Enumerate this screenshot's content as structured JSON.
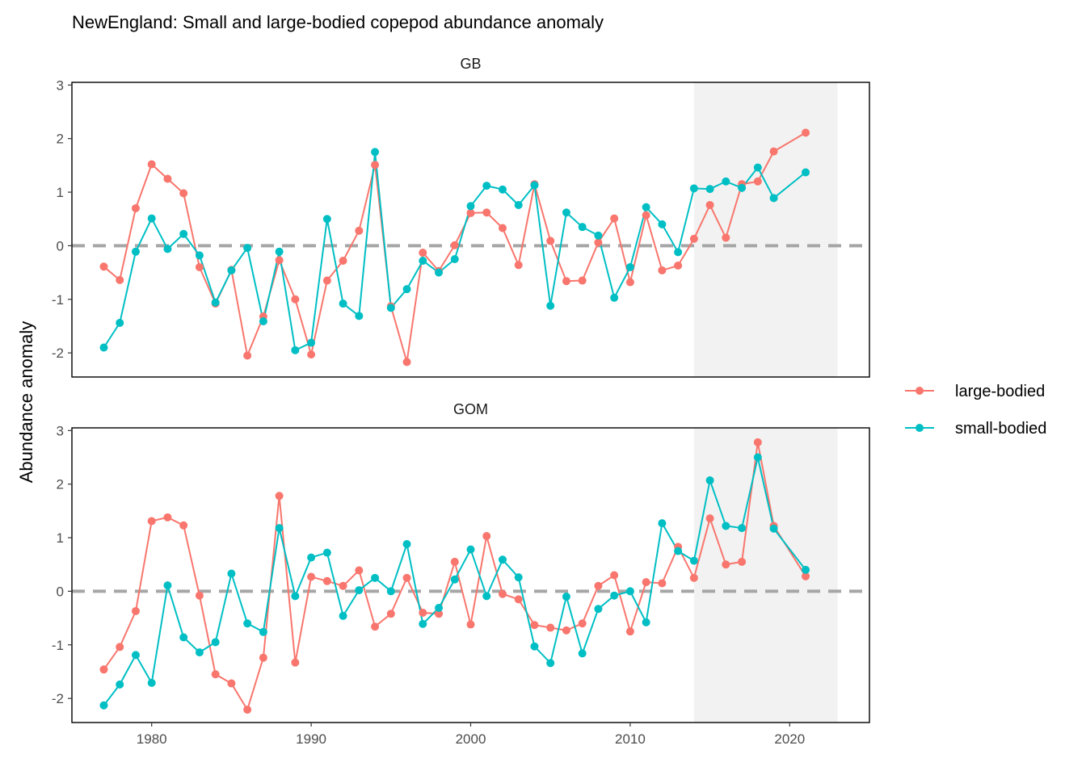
{
  "chart_data": {
    "type": "line",
    "title": "NewEngland: Small and large-bodied copepod abundance anomaly",
    "xlabel": "",
    "ylabel": "Abundance anomaly",
    "xlim": [
      1975,
      2025
    ],
    "ylim": [
      -2.45,
      3.05
    ],
    "x_ticks": [
      1980,
      1990,
      2000,
      2010,
      2020
    ],
    "y_ticks": [
      -2,
      -1,
      0,
      1,
      2,
      3
    ],
    "reference_line": 0,
    "shaded_region": [
      2014,
      2023
    ],
    "legend": {
      "position": "right",
      "entries": [
        "large-bodied",
        "small-bodied"
      ]
    },
    "colors": {
      "large-bodied": "#F8766D",
      "small-bodied": "#00BFC4",
      "shade": "#f2f2f2",
      "refline": "#a6a6a6"
    },
    "panels": [
      {
        "name": "GB",
        "series": [
          {
            "name": "large-bodied",
            "color": "#F8766D",
            "x": [
              1977,
              1978,
              1979,
              1980,
              1981,
              1982,
              1983,
              1984,
              1985,
              1986,
              1987,
              1988,
              1989,
              1990,
              1991,
              1992,
              1993,
              1994,
              1995,
              1996,
              1997,
              1998,
              1999,
              2000,
              2001,
              2002,
              2003,
              2004,
              2005,
              2006,
              2007,
              2008,
              2009,
              2010,
              2011,
              2012,
              2013,
              2014,
              2015,
              2016,
              2017,
              2018,
              2019,
              2021
            ],
            "y": [
              -0.39,
              -0.64,
              0.7,
              1.52,
              1.25,
              0.98,
              -0.4,
              -1.08,
              -0.45,
              -2.05,
              -1.32,
              -0.27,
              -1.0,
              -2.03,
              -0.65,
              -0.28,
              0.28,
              1.51,
              -1.13,
              -2.17,
              -0.13,
              -0.47,
              0.01,
              0.61,
              0.62,
              0.33,
              -0.36,
              1.15,
              0.09,
              -0.66,
              -0.65,
              0.06,
              0.51,
              -0.68,
              0.57,
              -0.46,
              -0.37,
              0.13,
              0.76,
              0.15,
              1.15,
              1.2,
              1.76,
              2.11
            ]
          },
          {
            "name": "small-bodied",
            "color": "#00BFC4",
            "x": [
              1977,
              1978,
              1979,
              1980,
              1981,
              1982,
              1983,
              1984,
              1985,
              1986,
              1987,
              1988,
              1989,
              1990,
              1991,
              1992,
              1993,
              1994,
              1995,
              1996,
              1997,
              1998,
              1999,
              2000,
              2001,
              2002,
              2003,
              2004,
              2005,
              2006,
              2007,
              2008,
              2009,
              2010,
              2011,
              2012,
              2013,
              2014,
              2015,
              2016,
              2017,
              2018,
              2019,
              2021
            ],
            "y": [
              -1.9,
              -1.44,
              -0.11,
              0.51,
              -0.06,
              0.22,
              -0.18,
              -1.06,
              -0.46,
              -0.04,
              -1.41,
              -0.11,
              -1.95,
              -1.81,
              0.5,
              -1.08,
              -1.31,
              1.75,
              -1.16,
              -0.81,
              -0.28,
              -0.5,
              -0.25,
              0.74,
              1.12,
              1.05,
              0.76,
              1.13,
              -1.12,
              0.62,
              0.35,
              0.19,
              -0.97,
              -0.4,
              0.72,
              0.4,
              -0.12,
              1.07,
              1.06,
              1.2,
              1.08,
              1.46,
              0.89,
              1.37
            ]
          }
        ]
      },
      {
        "name": "GOM",
        "series": [
          {
            "name": "large-bodied",
            "color": "#F8766D",
            "x": [
              1977,
              1978,
              1979,
              1980,
              1981,
              1982,
              1983,
              1984,
              1985,
              1986,
              1987,
              1988,
              1989,
              1990,
              1991,
              1992,
              1993,
              1994,
              1995,
              1996,
              1997,
              1998,
              1999,
              2000,
              2001,
              2002,
              2003,
              2004,
              2005,
              2006,
              2007,
              2008,
              2009,
              2010,
              2011,
              2012,
              2013,
              2014,
              2015,
              2016,
              2017,
              2018,
              2019,
              2021
            ],
            "y": [
              -1.46,
              -1.04,
              -0.37,
              1.31,
              1.38,
              1.23,
              -0.08,
              -1.55,
              -1.72,
              -2.21,
              -1.24,
              1.78,
              -1.33,
              0.27,
              0.19,
              0.1,
              0.39,
              -0.66,
              -0.42,
              0.25,
              -0.4,
              -0.42,
              0.55,
              -0.62,
              1.03,
              -0.05,
              -0.15,
              -0.63,
              -0.68,
              -0.73,
              -0.6,
              0.1,
              0.3,
              -0.75,
              0.17,
              0.15,
              0.83,
              0.25,
              1.36,
              0.5,
              0.55,
              2.78,
              1.22,
              0.28
            ]
          },
          {
            "name": "small-bodied",
            "color": "#00BFC4",
            "x": [
              1977,
              1978,
              1979,
              1980,
              1981,
              1982,
              1983,
              1984,
              1985,
              1986,
              1987,
              1988,
              1989,
              1990,
              1991,
              1992,
              1993,
              1994,
              1995,
              1996,
              1997,
              1998,
              1999,
              2000,
              2001,
              2002,
              2003,
              2004,
              2005,
              2006,
              2007,
              2008,
              2009,
              2010,
              2011,
              2012,
              2013,
              2014,
              2015,
              2016,
              2017,
              2018,
              2019,
              2021
            ],
            "y": [
              -2.13,
              -1.74,
              -1.19,
              -1.71,
              0.11,
              -0.86,
              -1.14,
              -0.95,
              0.33,
              -0.6,
              -0.76,
              1.18,
              -0.09,
              0.63,
              0.72,
              -0.46,
              0.02,
              0.25,
              0.0,
              0.88,
              -0.61,
              -0.31,
              0.22,
              0.78,
              -0.09,
              0.59,
              0.26,
              -1.03,
              -1.34,
              -0.1,
              -1.16,
              -0.33,
              -0.08,
              0.0,
              -0.58,
              1.27,
              0.75,
              0.57,
              2.07,
              1.22,
              1.18,
              2.5,
              1.17,
              0.4
            ]
          }
        ]
      }
    ]
  }
}
